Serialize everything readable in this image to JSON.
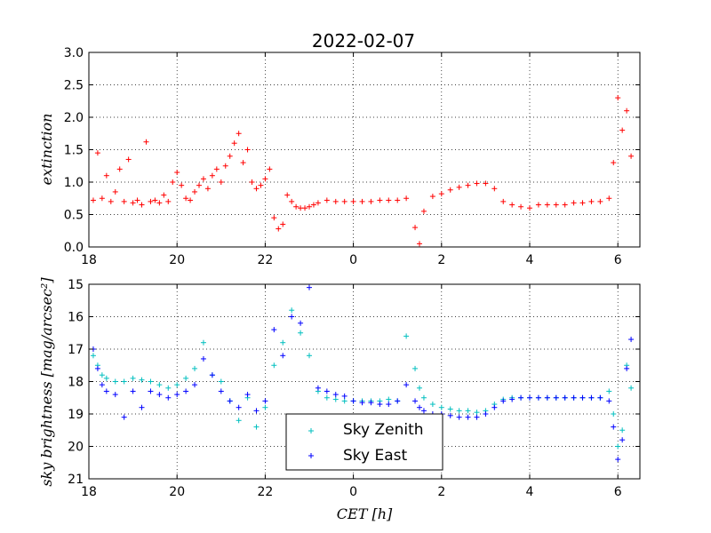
{
  "title": "2022-02-07",
  "colors": {
    "extinction": "#ff0000",
    "zenith": "#00bfbf",
    "east": "#0000ff"
  },
  "chart_data": [
    {
      "type": "scatter",
      "ylabel": "extinction",
      "xlim": [
        18,
        30.5
      ],
      "ylim": [
        0,
        3
      ],
      "y_inverted": false,
      "grid": true,
      "xtick_labels": [
        "18",
        "20",
        "22",
        "0",
        "2",
        "4",
        "6"
      ],
      "ytick_labels": [
        "0.0",
        "0.5",
        "1.0",
        "1.5",
        "2.0",
        "2.5",
        "3.0"
      ],
      "series": [
        {
          "color": "#ff0000",
          "x": [
            18.1,
            18.2,
            18.3,
            18.4,
            18.5,
            18.6,
            18.7,
            18.8,
            18.9,
            19.0,
            19.1,
            19.2,
            19.3,
            19.4,
            19.5,
            19.6,
            19.7,
            19.8,
            19.9,
            20.0,
            20.1,
            20.2,
            20.3,
            20.4,
            20.5,
            20.6,
            20.7,
            20.8,
            20.9,
            21.0,
            21.1,
            21.2,
            21.3,
            21.4,
            21.5,
            21.6,
            21.7,
            21.8,
            21.9,
            22.0,
            22.1,
            22.2,
            22.3,
            22.4,
            22.5,
            22.6,
            22.7,
            22.8,
            22.9,
            23.0,
            23.1,
            23.2,
            23.4,
            23.6,
            23.8,
            24.0,
            24.2,
            24.4,
            24.6,
            24.8,
            25.0,
            25.2,
            25.4,
            25.5,
            25.6,
            25.8,
            26.0,
            26.2,
            26.4,
            26.6,
            26.8,
            27.0,
            27.2,
            27.4,
            27.6,
            27.8,
            28.0,
            28.2,
            28.4,
            28.6,
            28.8,
            29.0,
            29.2,
            29.4,
            29.6,
            29.8,
            29.9,
            30.0,
            30.1,
            30.2,
            30.3
          ],
          "y": [
            0.72,
            1.45,
            0.75,
            1.1,
            0.7,
            0.85,
            1.2,
            0.7,
            1.35,
            0.68,
            0.72,
            0.65,
            1.62,
            0.7,
            0.72,
            0.68,
            0.8,
            0.7,
            1.0,
            1.15,
            0.95,
            0.75,
            0.72,
            0.85,
            0.95,
            1.05,
            0.9,
            1.1,
            1.2,
            1.0,
            1.25,
            1.4,
            1.6,
            1.75,
            1.3,
            1.5,
            1.0,
            0.9,
            0.95,
            1.05,
            1.2,
            0.45,
            0.28,
            0.35,
            0.8,
            0.7,
            0.62,
            0.6,
            0.6,
            0.62,
            0.65,
            0.68,
            0.72,
            0.7,
            0.7,
            0.7,
            0.7,
            0.7,
            0.72,
            0.72,
            0.72,
            0.75,
            0.3,
            0.05,
            0.55,
            0.78,
            0.82,
            0.88,
            0.92,
            0.95,
            0.98,
            0.98,
            0.9,
            0.7,
            0.65,
            0.62,
            0.6,
            0.65,
            0.65,
            0.65,
            0.65,
            0.68,
            0.68,
            0.7,
            0.7,
            0.75,
            1.3,
            2.3,
            1.8,
            2.1,
            1.4
          ]
        }
      ]
    },
    {
      "type": "scatter",
      "ylabel": "sky brightness [mag/arcsec²]",
      "xlabel": "CET [h]",
      "xlim": [
        18,
        30.5
      ],
      "ylim": [
        21,
        15
      ],
      "y_inverted": true,
      "grid": true,
      "xtick_labels": [
        "18",
        "20",
        "22",
        "0",
        "2",
        "4",
        "6"
      ],
      "ytick_labels": [
        "15",
        "16",
        "17",
        "18",
        "19",
        "20",
        "21"
      ],
      "legend": {
        "placement": "lower center",
        "entries": [
          "Sky Zenith",
          "Sky East"
        ]
      },
      "series": [
        {
          "name": "Sky Zenith",
          "color": "#00bfbf",
          "x": [
            18.1,
            18.2,
            18.3,
            18.4,
            18.6,
            18.8,
            19.0,
            19.2,
            19.4,
            19.6,
            19.8,
            20.0,
            20.2,
            20.4,
            20.6,
            20.8,
            21.0,
            21.2,
            21.4,
            21.6,
            21.8,
            22.0,
            22.2,
            22.4,
            22.6,
            22.8,
            23.0,
            23.2,
            23.4,
            23.6,
            23.8,
            24.0,
            24.2,
            24.4,
            24.6,
            24.8,
            25.0,
            25.2,
            25.4,
            25.5,
            25.6,
            25.8,
            26.0,
            26.2,
            26.4,
            26.6,
            26.8,
            27.0,
            27.2,
            27.4,
            27.6,
            27.8,
            28.0,
            28.2,
            28.4,
            28.6,
            28.8,
            29.0,
            29.2,
            29.4,
            29.6,
            29.8,
            29.9,
            30.0,
            30.1,
            30.2,
            30.3
          ],
          "y": [
            17.2,
            17.5,
            17.8,
            17.9,
            18.0,
            18.0,
            17.9,
            17.95,
            18.0,
            18.1,
            18.2,
            18.1,
            17.9,
            17.6,
            16.8,
            17.8,
            18.0,
            18.6,
            19.2,
            18.5,
            19.4,
            18.8,
            17.5,
            16.8,
            15.8,
            16.5,
            17.2,
            18.3,
            18.5,
            18.55,
            18.6,
            18.6,
            18.6,
            18.6,
            18.6,
            18.55,
            18.6,
            16.6,
            17.6,
            18.2,
            18.5,
            18.7,
            18.8,
            18.85,
            18.9,
            18.9,
            18.95,
            18.9,
            18.7,
            18.55,
            18.5,
            18.5,
            18.5,
            18.5,
            18.5,
            18.5,
            18.5,
            18.5,
            18.5,
            18.5,
            18.5,
            18.3,
            19.0,
            20.0,
            19.5,
            17.5,
            18.2
          ]
        },
        {
          "name": "Sky East",
          "color": "#0000ff",
          "x": [
            18.1,
            18.2,
            18.3,
            18.4,
            18.6,
            18.8,
            19.0,
            19.2,
            19.4,
            19.6,
            19.8,
            20.0,
            20.2,
            20.4,
            20.6,
            20.8,
            21.0,
            21.2,
            21.4,
            21.6,
            21.8,
            22.0,
            22.2,
            22.4,
            22.6,
            22.8,
            23.0,
            23.2,
            23.4,
            23.6,
            23.8,
            24.0,
            24.2,
            24.4,
            24.6,
            24.8,
            25.0,
            25.2,
            25.4,
            25.5,
            25.6,
            25.8,
            26.0,
            26.2,
            26.4,
            26.6,
            26.8,
            27.0,
            27.2,
            27.4,
            27.6,
            27.8,
            28.0,
            28.2,
            28.4,
            28.6,
            28.8,
            29.0,
            29.2,
            29.4,
            29.6,
            29.8,
            29.9,
            30.0,
            30.1,
            30.2,
            30.3
          ],
          "y": [
            17.0,
            17.6,
            18.1,
            18.3,
            18.4,
            19.1,
            18.3,
            18.8,
            18.3,
            18.4,
            18.5,
            18.4,
            18.3,
            18.1,
            17.3,
            17.8,
            18.3,
            18.6,
            18.8,
            18.4,
            18.9,
            18.6,
            16.4,
            17.2,
            16.0,
            16.2,
            15.1,
            18.2,
            18.3,
            18.4,
            18.45,
            18.6,
            18.65,
            18.65,
            18.7,
            18.7,
            18.6,
            18.1,
            18.6,
            18.8,
            18.9,
            19.0,
            19.0,
            19.05,
            19.1,
            19.1,
            19.1,
            19.0,
            18.8,
            18.6,
            18.55,
            18.5,
            18.5,
            18.5,
            18.5,
            18.5,
            18.5,
            18.5,
            18.5,
            18.5,
            18.5,
            18.6,
            19.4,
            20.4,
            19.8,
            17.6,
            16.7
          ]
        }
      ]
    }
  ]
}
